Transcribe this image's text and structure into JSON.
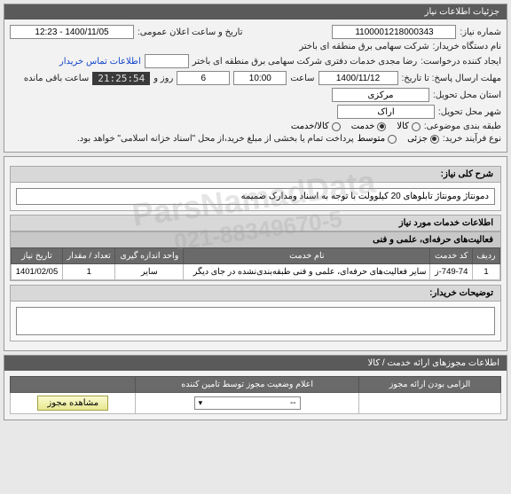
{
  "watermark": {
    "name": "ParsNamadData",
    "phone": "021-88349670-5"
  },
  "panel1": {
    "title": "جزئیات اطلاعات نیاز",
    "need_no_label": "شماره نیاز:",
    "need_no": "1100001218000343",
    "announce_label": "تاریخ و ساعت اعلان عمومی:",
    "announce": "1400/11/05 - 12:23",
    "buyer_org_label": "نام دستگاه خریدار:",
    "buyer_org": "شرکت سهامی برق منطقه ای باختر",
    "requester_label": "ایجاد کننده درخواست:",
    "requester": "رضا مجدی خدمات دفتری شرکت سهامی برق منطقه ای باختر",
    "contact_link": "اطلاعات تماس خریدار",
    "deadline_label": "مهلت ارسال پاسخ: تا تاریخ:",
    "deadline_date": "1400/11/12",
    "time_label": "ساعت",
    "deadline_time": "10:00",
    "days": "6",
    "days_label": "روز و",
    "countdown": "21:25:54",
    "remaining_label": "ساعت باقی مانده",
    "delivery_prov_label": "استان محل تحویل:",
    "delivery_prov": "مرکزی",
    "delivery_city_label": "شهر محل تحویل:",
    "delivery_city": "اراک",
    "subject_class_label": "طبقه بندی موضوعی:",
    "subject_options": [
      {
        "label": "کالا",
        "checked": false
      },
      {
        "label": "خدمت",
        "checked": true
      },
      {
        "label": "کالا/خدمت",
        "checked": false
      }
    ],
    "process_label": "نوع فرآیند خرید:",
    "process_options": [
      {
        "label": "جزئی",
        "checked": true
      },
      {
        "label": "متوسط",
        "checked": false
      }
    ],
    "process_note": "پرداخت تمام یا بخشی از مبلغ خرید،از محل \"اسناد خزانه اسلامی\" خواهد بود."
  },
  "panel2": {
    "general_label": "شرح کلی نیاز:",
    "general_text": "دمونتاژ ومونتاژ تابلوهای 20 کیلوولت با توجه به اسناد ومدارک ضمیمه",
    "services_title": "اطلاعات خدمات مورد نیاز",
    "category_band": "فعالیت‌های حرفه‌ای، علمی و فنی",
    "table": {
      "headers": [
        "ردیف",
        "کد خدمت",
        "نام خدمت",
        "واحد اندازه گیری",
        "تعداد / مقدار",
        "تاریخ نیاز"
      ],
      "rows": [
        [
          "1",
          "749-74-ز",
          "سایر فعالیت‌های حرفه‌ای، علمی و فنی طبقه‌بندی‌نشده در جای دیگر",
          "سایر",
          "1",
          "1401/02/05"
        ]
      ]
    },
    "buyer_notes_label": "توضیحات خریدار:"
  },
  "panel3": {
    "title": "اطلاعات مجوزهای ارائه خدمت / کالا",
    "table": {
      "headers": [
        "الزامی بودن ارائه مجوز",
        "اعلام وضعیت مجوز توسط تامین کننده",
        ""
      ],
      "select_placeholder": "--",
      "view_btn": "مشاهده مجوز"
    }
  }
}
